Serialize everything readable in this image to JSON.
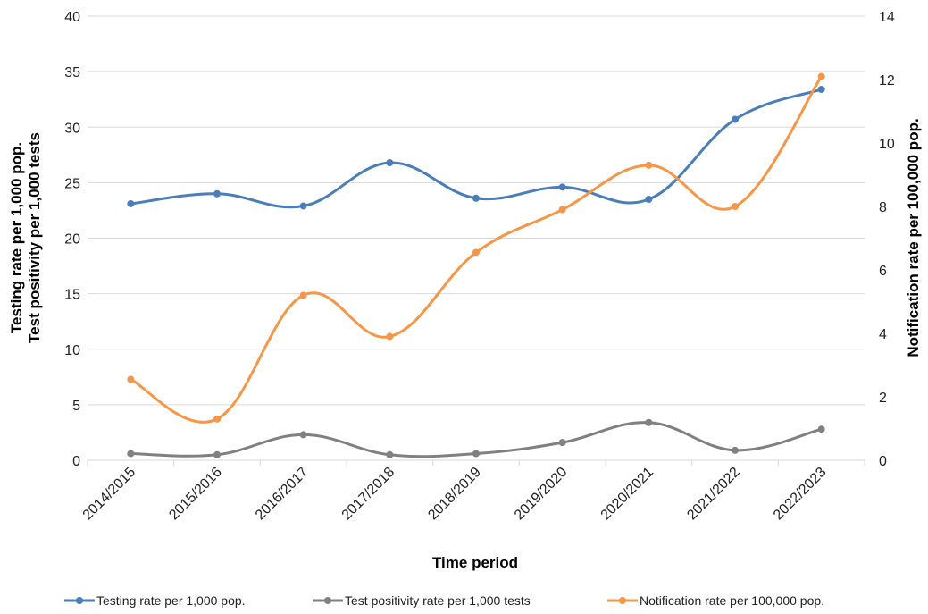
{
  "chart_data": {
    "type": "line",
    "title": "",
    "xlabel": "Time period",
    "ylabel_left": [
      "Testing rate per 1,000 pop.",
      "Test positivity per 1,000 tests"
    ],
    "ylabel_right": "Notification rate per 100,000 pop.",
    "categories": [
      "2014/2015",
      "2015/2016",
      "2016/2017",
      "2017/2018",
      "2018/2019",
      "2019/2020",
      "2020/2021",
      "2021/2022",
      "2022/2023"
    ],
    "ylim_left": [
      0,
      40
    ],
    "yticks_left": [
      "0",
      "5",
      "10",
      "15",
      "20",
      "25",
      "30",
      "35",
      "40"
    ],
    "ylim_right": [
      0,
      14
    ],
    "yticks_right": [
      "0",
      "2",
      "4",
      "6",
      "8",
      "10",
      "12",
      "14"
    ],
    "grid": true,
    "legend_position": "bottom",
    "series": [
      {
        "name": "Testing rate per 1,000 pop.",
        "axis": "left",
        "color": "#4a7ebb",
        "values": [
          23.1,
          24.0,
          22.9,
          26.8,
          23.6,
          24.6,
          23.5,
          30.7,
          33.4
        ]
      },
      {
        "name": "Test positivity rate per 1,000 tests",
        "axis": "left",
        "color": "#808080",
        "values": [
          0.6,
          0.5,
          2.3,
          0.5,
          0.6,
          1.6,
          3.4,
          0.9,
          2.8
        ]
      },
      {
        "name": "Notification rate per 100,000 pop.",
        "axis": "right",
        "color": "#f79646",
        "values": [
          2.55,
          1.3,
          5.2,
          3.9,
          6.55,
          7.9,
          9.3,
          8.0,
          12.1
        ]
      }
    ]
  }
}
